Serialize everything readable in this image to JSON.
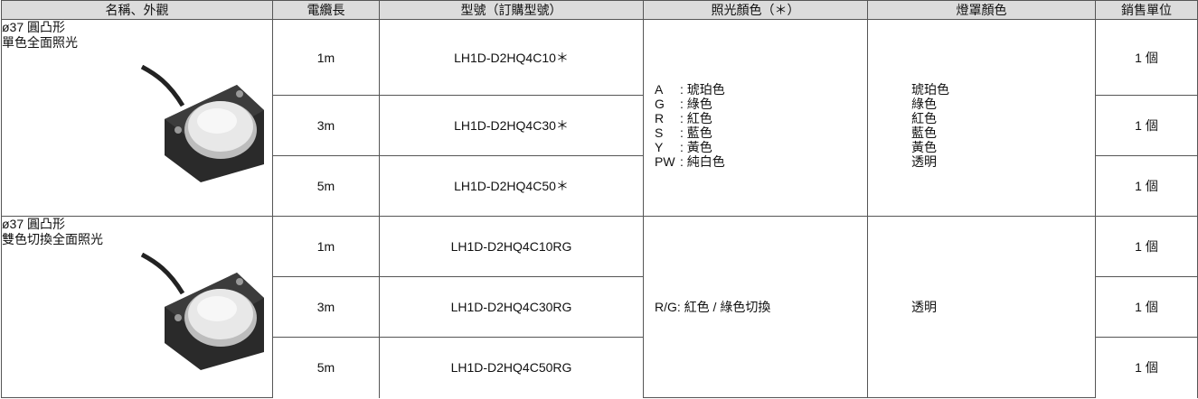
{
  "table": {
    "header": [
      "名稱、外觀",
      "電纜長",
      "型號（訂購型號）",
      "照光顏色（＊）",
      "燈罩顏色",
      "銷售單位"
    ],
    "groups": [
      {
        "name": [
          "ø37 圓凸形",
          "單色全面照光"
        ],
        "rows": [
          {
            "cable": "1m",
            "model": "LH1D-D2HQ4C10＊",
            "unit": "1 個"
          },
          {
            "cable": "3m",
            "model": "LH1D-D2HQ4C30＊",
            "unit": "1 個"
          },
          {
            "cable": "5m",
            "model": "LH1D-D2HQ4C50＊",
            "unit": "1 個"
          }
        ],
        "illumination": [
          {
            "code": "A",
            "name": ": 琥珀色"
          },
          {
            "code": "G",
            "name": ": 綠色"
          },
          {
            "code": "R",
            "name": ": 紅色"
          },
          {
            "code": "S",
            "name": ": 藍色"
          },
          {
            "code": "Y",
            "name": ": 黃色"
          },
          {
            "code": "PW",
            "name": ": 純白色"
          }
        ],
        "cover": [
          "琥珀色",
          "綠色",
          "紅色",
          "藍色",
          "黃色",
          "透明"
        ]
      },
      {
        "name": [
          "ø37 圓凸形",
          "雙色切換全面照光"
        ],
        "rows": [
          {
            "cable": "1m",
            "model": "LH1D-D2HQ4C10RG",
            "unit": "1 個"
          },
          {
            "cable": "3m",
            "model": "LH1D-D2HQ4C30RG",
            "unit": "1 個"
          },
          {
            "cable": "5m",
            "model": "LH1D-D2HQ4C50RG",
            "unit": "1 個"
          }
        ],
        "illumination": "R/G: 紅色 / 綠色切換",
        "cover": "透明"
      }
    ]
  }
}
